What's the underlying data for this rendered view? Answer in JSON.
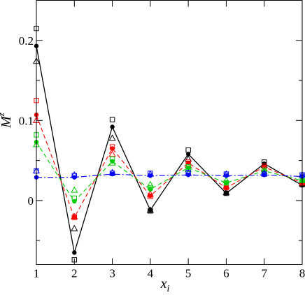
{
  "chart_data": {
    "type": "line",
    "xlabel": "x",
    "xlabel_sub": "i",
    "ylabel": "M",
    "ylabel_sup": "z",
    "xlim": [
      1,
      8
    ],
    "ylim": [
      -0.08,
      0.25
    ],
    "x_ticks": [
      1,
      2,
      3,
      4,
      5,
      6,
      7,
      8
    ],
    "y_ticks": [
      0,
      0.1,
      0.2
    ],
    "y_tick_labels": [
      "0",
      "0.1",
      "0.2"
    ],
    "grid": false,
    "legend": "none",
    "series": [
      {
        "color": "#000000",
        "line": "solid",
        "marker": "filled-circle",
        "x": [
          1,
          2,
          3,
          4,
          5,
          6,
          7,
          8
        ],
        "y": [
          0.193,
          -0.065,
          0.092,
          -0.012,
          0.058,
          0.009,
          0.046,
          0.019
        ]
      },
      {
        "color": "#000000",
        "marker": "open-square",
        "x": [
          1,
          2,
          3,
          4,
          5,
          6,
          7,
          8
        ],
        "y": [
          0.215,
          -0.074,
          0.101,
          -0.013,
          0.063,
          0.009,
          0.048,
          0.02
        ]
      },
      {
        "color": "#000000",
        "marker": "open-triangle",
        "x": [
          1,
          2,
          3,
          4,
          5,
          6,
          7,
          8
        ],
        "y": [
          0.174,
          -0.035,
          0.078,
          -0.012,
          0.052,
          0.01,
          0.044,
          0.021
        ]
      },
      {
        "color": "#ff0000",
        "line": "dashed",
        "marker": "filled-circle",
        "x": [
          1,
          2,
          3,
          4,
          5,
          6,
          7,
          8
        ],
        "y": [
          0.107,
          -0.021,
          0.065,
          0.006,
          0.047,
          0.016,
          0.042,
          0.022
        ]
      },
      {
        "color": "#ff0000",
        "marker": "open-square",
        "x": [
          1,
          2,
          3,
          4,
          5,
          6,
          7,
          8
        ],
        "y": [
          0.125,
          -0.021,
          0.067,
          0.005,
          0.048,
          0.016,
          0.043,
          0.022
        ]
      },
      {
        "color": "#ff0000",
        "marker": "open-triangle",
        "x": [
          1,
          2,
          3,
          4,
          5,
          6,
          7,
          8
        ],
        "y": [
          0.1,
          -0.02,
          0.058,
          0.008,
          0.044,
          0.018,
          0.04,
          0.023
        ]
      },
      {
        "color": "#00cc00",
        "line": "dashed",
        "marker": "filled-circle",
        "x": [
          1,
          2,
          3,
          4,
          5,
          6,
          7,
          8
        ],
        "y": [
          0.073,
          -0.001,
          0.049,
          0.014,
          0.041,
          0.022,
          0.037,
          0.025
        ]
      },
      {
        "color": "#00cc00",
        "marker": "open-square",
        "x": [
          1,
          2,
          3,
          4,
          5,
          6,
          7,
          8
        ],
        "y": [
          0.082,
          0.003,
          0.052,
          0.016,
          0.042,
          0.022,
          0.038,
          0.025
        ]
      },
      {
        "color": "#00cc00",
        "marker": "open-triangle",
        "x": [
          1,
          2,
          3,
          4,
          5,
          6,
          7,
          8
        ],
        "y": [
          0.07,
          0.013,
          0.047,
          0.02,
          0.039,
          0.025,
          0.036,
          0.026
        ]
      },
      {
        "color": "#0000ff",
        "line": "dashdot",
        "marker": "filled-circle",
        "x": [
          1,
          2,
          3,
          4,
          5,
          6,
          7,
          8
        ],
        "y": [
          0.029,
          0.029,
          0.033,
          0.031,
          0.032,
          0.031,
          0.032,
          0.03
        ]
      },
      {
        "color": "#0000ff",
        "marker": "open-square",
        "x": [
          1,
          2,
          3,
          4,
          5,
          6,
          7,
          8
        ],
        "y": [
          0.037,
          0.031,
          0.034,
          0.034,
          0.035,
          0.033,
          0.033,
          0.032
        ]
      },
      {
        "color": "#0000ff",
        "marker": "open-triangle",
        "x": [
          1,
          2,
          3,
          4,
          5,
          6,
          7,
          8
        ],
        "y": [
          0.037,
          0.032,
          0.035,
          0.033,
          0.034,
          0.033,
          0.034,
          0.032
        ]
      }
    ]
  }
}
